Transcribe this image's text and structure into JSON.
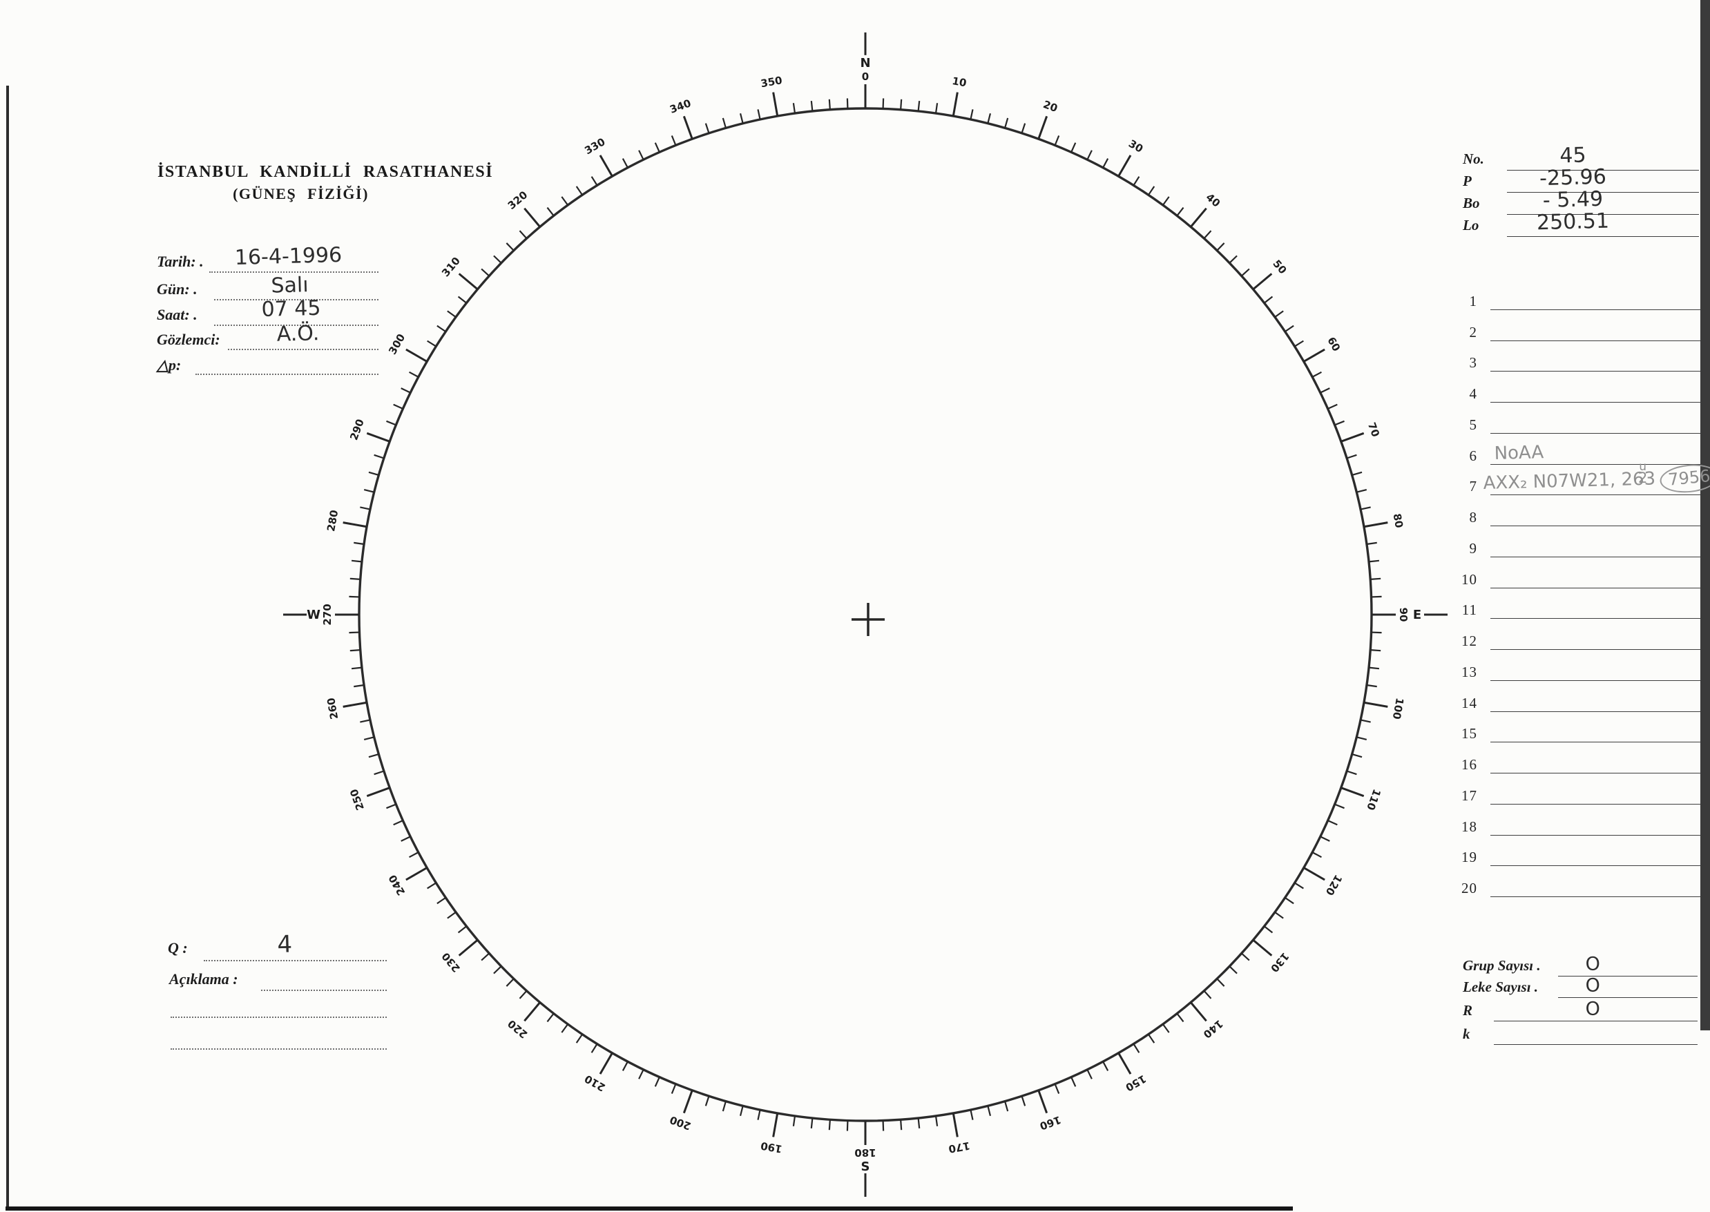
{
  "header": {
    "title_line1": "İSTANBUL KANDİLLİ RASATHANESİ",
    "title_line2": "(GÜNEŞ FİZİĞİ)"
  },
  "info_fields": [
    {
      "label": "Tarih: .",
      "value": "16-4-1996"
    },
    {
      "label": "Gün: .",
      "value": "Salı"
    },
    {
      "label": "Saat: .",
      "value": "07 45"
    },
    {
      "label": "Gözlemci:",
      "value": "A.Ö."
    },
    {
      "label": "△p:",
      "value": ""
    }
  ],
  "ephemeris": [
    {
      "label": "No.",
      "value": "45"
    },
    {
      "label": "P",
      "value": "-25.96"
    },
    {
      "label": "Bo",
      "value": "- 5.49"
    },
    {
      "label": "Lo",
      "value": "250.51"
    }
  ],
  "observations": {
    "rows": [
      {
        "num": "1",
        "text": ""
      },
      {
        "num": "2",
        "text": ""
      },
      {
        "num": "3",
        "text": ""
      },
      {
        "num": "4",
        "text": ""
      },
      {
        "num": "5",
        "text": ""
      },
      {
        "num": "6",
        "text": "NoAA"
      },
      {
        "num": "7",
        "text": "AXX₂   N07W21, 263",
        "sup": "u",
        "sub": "2",
        "circled": "7956"
      },
      {
        "num": "8",
        "text": ""
      },
      {
        "num": "9",
        "text": ""
      },
      {
        "num": "10",
        "text": ""
      },
      {
        "num": "11",
        "text": ""
      },
      {
        "num": "12",
        "text": ""
      },
      {
        "num": "13",
        "text": ""
      },
      {
        "num": "14",
        "text": ""
      },
      {
        "num": "15",
        "text": ""
      },
      {
        "num": "16",
        "text": ""
      },
      {
        "num": "17",
        "text": ""
      },
      {
        "num": "18",
        "text": ""
      },
      {
        "num": "19",
        "text": ""
      },
      {
        "num": "20",
        "text": ""
      }
    ]
  },
  "summary": [
    {
      "label": "Grup Sayısı .",
      "value": "O"
    },
    {
      "label": "Leke Sayısı .",
      "value": "O"
    },
    {
      "label": "R",
      "value": "O"
    },
    {
      "label": "k",
      "value": ""
    }
  ],
  "bottom_left": {
    "q_label": "Q :",
    "q_value": "4",
    "note_label": "Açıklama :"
  },
  "dial": {
    "tick_step_deg": 2,
    "major_step_deg": 10,
    "cardinals": [
      {
        "deg": 0,
        "number": "0",
        "letter": "N"
      },
      {
        "deg": 90,
        "number": "90",
        "letter": "E"
      },
      {
        "deg": 180,
        "number": "180",
        "letter": "S"
      },
      {
        "deg": 270,
        "number": "270",
        "letter": "W"
      }
    ],
    "degree_labels": [
      {
        "deg": 10,
        "text": "10"
      },
      {
        "deg": 20,
        "text": "20"
      },
      {
        "deg": 30,
        "text": "30"
      },
      {
        "deg": 40,
        "text": "40"
      },
      {
        "deg": 50,
        "text": "50"
      },
      {
        "deg": 60,
        "text": "60"
      },
      {
        "deg": 70,
        "text": "70"
      },
      {
        "deg": 80,
        "text": "80"
      },
      {
        "deg": 100,
        "text": "100"
      },
      {
        "deg": 110,
        "text": "110"
      },
      {
        "deg": 120,
        "text": "120"
      },
      {
        "deg": 130,
        "text": "130"
      },
      {
        "deg": 140,
        "text": "140"
      },
      {
        "deg": 150,
        "text": "150"
      },
      {
        "deg": 160,
        "text": "160"
      },
      {
        "deg": 170,
        "text": "170"
      },
      {
        "deg": 190,
        "text": "190"
      },
      {
        "deg": 200,
        "text": "200"
      },
      {
        "deg": 210,
        "text": "210"
      },
      {
        "deg": 220,
        "text": "220"
      },
      {
        "deg": 230,
        "text": "230"
      },
      {
        "deg": 240,
        "text": "240"
      },
      {
        "deg": 250,
        "text": "250"
      },
      {
        "deg": 260,
        "text": "260"
      },
      {
        "deg": 280,
        "text": "280"
      },
      {
        "deg": 290,
        "text": "290"
      },
      {
        "deg": 300,
        "text": "300"
      },
      {
        "deg": 310,
        "text": "310"
      },
      {
        "deg": 320,
        "text": "320"
      },
      {
        "deg": 330,
        "text": "330"
      },
      {
        "deg": 340,
        "text": "340"
      },
      {
        "deg": 350,
        "text": "350"
      }
    ]
  }
}
